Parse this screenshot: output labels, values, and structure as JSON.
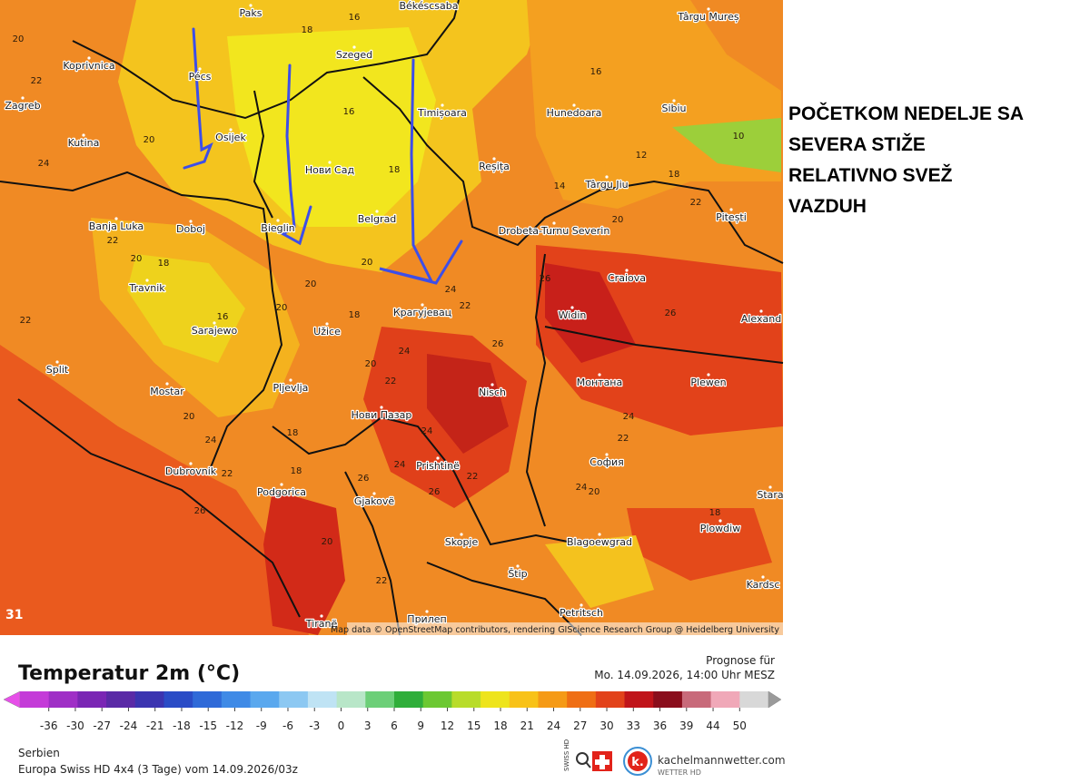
{
  "annotation": {
    "lines": [
      "POČETKOM NEDELJE SA",
      "SEVERA STIŽE",
      "RELATIVNO SVEŽ",
      "VAZDUH"
    ]
  },
  "map": {
    "cities": [
      "Paks",
      "Békéscsaba",
      "Târgu Mureș",
      "Koprivnica",
      "Pécs",
      "Szeged",
      "Zagreb",
      "Timișoara",
      "Hunedoara",
      "Sibiu",
      "Osijek",
      "Kutina",
      "Нови Сад",
      "Reșița",
      "Târgu Jiu",
      "Banja Luka",
      "Doboj",
      "Bieglin",
      "Belgrad",
      "Drobeta-Turnu Severin",
      "Pitești",
      "Craiova",
      "Travnik",
      "Крагујевац",
      "Widin",
      "Sarajewo",
      "Užice",
      "Alexand",
      "Split",
      "Mostar",
      "Nisch",
      "Монтана",
      "Plewen",
      "Pljevlja",
      "Нови Пазар",
      "Dubrovnik",
      "Prishtinë",
      "София",
      "Podgorica",
      "Gjakovë",
      "Stara",
      "Skopje",
      "Blagoewgrad",
      "Plowdiw",
      "Štip",
      "Kardsc",
      "Petritsch",
      "Tiranë",
      "Прилеп"
    ],
    "temperature_labels": [
      "16",
      "18",
      "20",
      "22",
      "16",
      "18",
      "20",
      "24",
      "22",
      "20",
      "18",
      "20",
      "22",
      "16",
      "18",
      "20",
      "20",
      "24",
      "22",
      "26",
      "26",
      "26",
      "24",
      "22",
      "20",
      "18",
      "20",
      "24",
      "22",
      "26",
      "24",
      "22",
      "18",
      "20",
      "22",
      "24",
      "26",
      "18",
      "20",
      "14",
      "12",
      "16",
      "10",
      "22",
      "24",
      "20",
      "18",
      "22",
      "24",
      "26"
    ],
    "corner_label": "31",
    "attribution": "Map data © OpenStreetMap contributors, rendering GIScience Research Group @ Heidelberg University"
  },
  "legend": {
    "title": "Temperatur 2m (°C)",
    "ticks": [
      -36,
      -30,
      -27,
      -24,
      -21,
      -18,
      -15,
      -12,
      -9,
      -6,
      -3,
      0,
      3,
      6,
      9,
      12,
      15,
      18,
      21,
      24,
      27,
      30,
      33,
      36,
      39,
      44,
      50
    ],
    "colors": [
      "#e64fe8",
      "#c43bd8",
      "#9f2fc6",
      "#7a26b4",
      "#5a2aa6",
      "#3b34b0",
      "#2a4cc6",
      "#2f6ad8",
      "#3f8ae6",
      "#5aa8ee",
      "#8cc8f2",
      "#bfe3f4",
      "#b8e6c8",
      "#6ccf78",
      "#2fae3a",
      "#6cc832",
      "#b8dc2a",
      "#eee41c",
      "#f8c218",
      "#f59a16",
      "#ef6e14",
      "#e2421a",
      "#c0141a",
      "#8a0e1c",
      "#c86a7a",
      "#f0a8b8",
      "#d8d8d8",
      "#9a9a9a"
    ]
  },
  "forecast": {
    "label": "Prognose für",
    "time": "Mo. 14.09.2026, 14:00 Uhr MESZ"
  },
  "footer": {
    "region": "Serbien",
    "model": "Europa Swiss HD 4x4 (3 Tage) vom 14.09.2026/03z"
  },
  "brand": {
    "swiss": "SWISS HD",
    "name": "kachelmannwetter.com",
    "sub": "WETTER HD"
  }
}
